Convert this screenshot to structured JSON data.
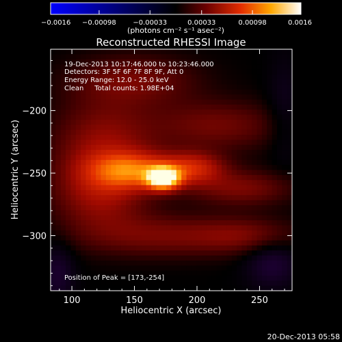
{
  "chart_data": {
    "type": "heatmap",
    "title": "Reconstructed RHESSI Image",
    "xlabel": "Heliocentric X (arcsec)",
    "ylabel": "Heliocentric Y (arcsec)",
    "xlim": [
      83,
      276
    ],
    "ylim": [
      -344,
      -151
    ],
    "xticks": [
      100,
      150,
      200,
      250
    ],
    "yticks": [
      -200,
      -250,
      -300
    ],
    "colorbar": {
      "range": [
        -0.0016,
        0.0016
      ],
      "tick_values": [
        -0.0016,
        -0.00098,
        -0.00033,
        0.00033,
        0.00098,
        0.0016
      ],
      "tick_labels": [
        "-0.0016",
        "-0.00098",
        "-0.00033",
        "0.00033",
        "0.00098",
        "0.0016"
      ],
      "unit_label": "(photons cm⁻² s⁻¹ asec⁻²)"
    },
    "annotations": [
      "19-Dec-2013 10:17:46.000 to 10:23:46.000",
      "Detectors: 3F 5F 6F 7F 8F 9F, Att 0",
      "Energy Range: 12.0 - 25.0 keV",
      "Clean     Total counts: 1.98E+04"
    ],
    "peak": {
      "x": 173,
      "y": -254,
      "label": "Position of Peak = [173,-254]"
    },
    "sources": [
      {
        "x": 173,
        "y": -254,
        "sx": 9,
        "sy": 6,
        "amp": 1.0
      },
      {
        "x": 148,
        "y": -248,
        "sx": 22,
        "sy": 10,
        "amp": 0.5
      },
      {
        "x": 196,
        "y": -246,
        "sx": 18,
        "sy": 9,
        "amp": 0.4
      },
      {
        "x": 125,
        "y": -228,
        "sx": 28,
        "sy": 26,
        "amp": 0.26
      },
      {
        "x": 122,
        "y": -268,
        "sx": 26,
        "sy": 20,
        "amp": 0.24
      },
      {
        "x": 215,
        "y": -212,
        "sx": 38,
        "sy": 14,
        "amp": 0.2
      },
      {
        "x": 150,
        "y": -176,
        "sx": 35,
        "sy": 14,
        "amp": 0.2
      },
      {
        "x": 235,
        "y": -262,
        "sx": 30,
        "sy": 10,
        "amp": 0.22
      },
      {
        "x": 170,
        "y": -300,
        "sx": 45,
        "sy": 12,
        "amp": 0.2
      },
      {
        "x": 240,
        "y": -300,
        "sx": 30,
        "sy": 10,
        "amp": 0.18
      },
      {
        "x": 260,
        "y": -322,
        "sx": 15,
        "sy": 14,
        "amp": -0.18
      },
      {
        "x": 88,
        "y": -330,
        "sx": 10,
        "sy": 18,
        "amp": -0.16
      },
      {
        "x": 270,
        "y": -200,
        "sx": 10,
        "sy": 30,
        "amp": -0.1
      }
    ],
    "colors": {
      "background": "#000000",
      "colorbar_stops": [
        "#0000ff",
        "#00004a",
        "#000000",
        "#6a0000",
        "#e42d00",
        "#ffa700",
        "#ffffff"
      ]
    }
  },
  "timestamp": "20-Dec-2013 05:58"
}
